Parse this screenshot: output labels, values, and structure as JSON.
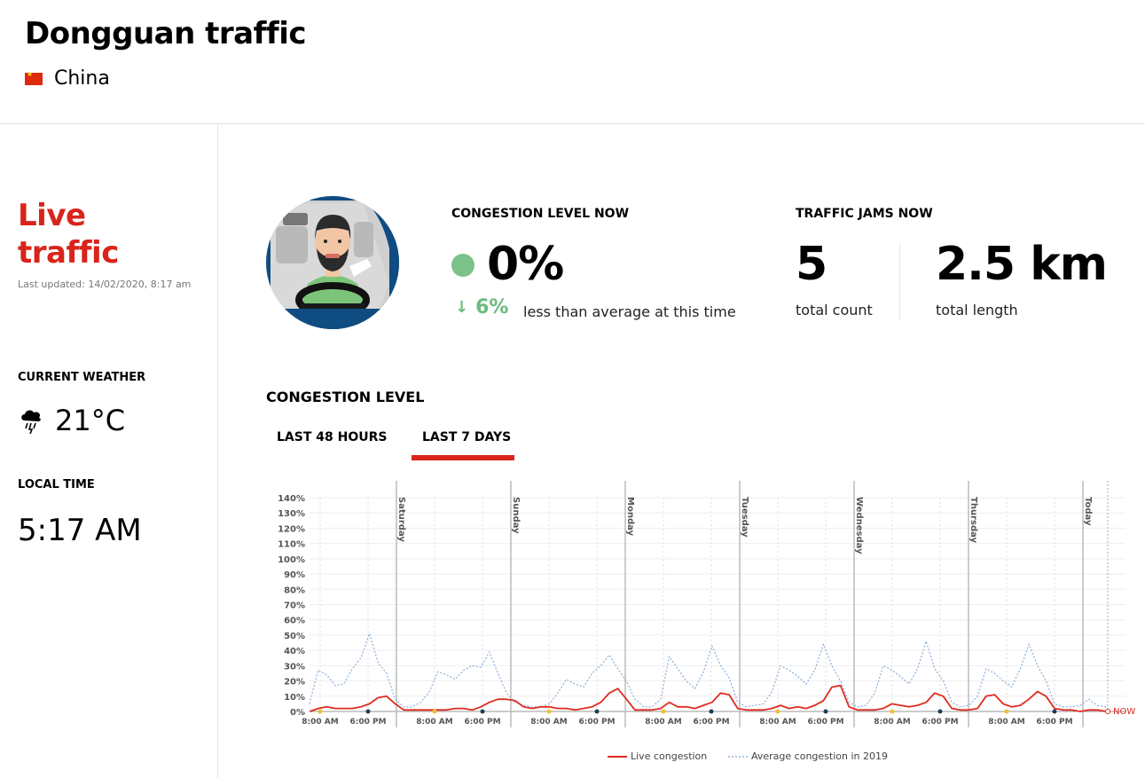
{
  "header": {
    "title": "Dongguan traffic",
    "country": "China"
  },
  "sidebar": {
    "live_title_line1": "Live",
    "live_title_line2": "traffic",
    "last_updated": "Last updated: 14/02/2020, 8:17 am",
    "weather_heading": "CURRENT WEATHER",
    "weather_icon": "thunderstorm-icon",
    "temperature": "21°C",
    "time_heading": "LOCAL TIME",
    "local_time": "5:17 AM"
  },
  "metrics": {
    "congestion_label": "CONGESTION LEVEL NOW",
    "congestion_value": "0%",
    "congestion_delta": "6%",
    "congestion_delta_text": "less than average at this time",
    "jams_label": "TRAFFIC JAMS NOW",
    "jams_count": "5",
    "jams_count_label": "total count",
    "jams_length": "2.5 km",
    "jams_length_label": "total length",
    "status_color": "#7bc28b"
  },
  "section": {
    "title": "CONGESTION LEVEL",
    "tabs": [
      {
        "label": "LAST 48 HOURS",
        "active": false
      },
      {
        "label": "LAST 7 DAYS",
        "active": true
      }
    ]
  },
  "chart_data": {
    "type": "line",
    "ylim": [
      0,
      140
    ],
    "yticks": [
      "0%",
      "10%",
      "20%",
      "30%",
      "40%",
      "50%",
      "60%",
      "70%",
      "80%",
      "90%",
      "100%",
      "110%",
      "120%",
      "130%",
      "140%"
    ],
    "day_labels": [
      "Saturday",
      "Sunday",
      "Monday",
      "Tuesday",
      "Wednesday",
      "Thursday",
      "Today"
    ],
    "x_tick_labels": [
      "8:00 AM",
      "6:00 PM"
    ],
    "now_label": "NOW",
    "series": [
      {
        "name": "Live congestion",
        "color": "#e02b20",
        "values": [
          0,
          2,
          3,
          2,
          2,
          2,
          3,
          5,
          9,
          10,
          5,
          1,
          1,
          1,
          1,
          1,
          1,
          2,
          2,
          1,
          3,
          6,
          8,
          8,
          7,
          3,
          2,
          3,
          3,
          2,
          2,
          1,
          2,
          3,
          6,
          12,
          15,
          8,
          1,
          1,
          1,
          2,
          6,
          3,
          3,
          2,
          4,
          6,
          12,
          11,
          2,
          1,
          1,
          1,
          2,
          4,
          2,
          3,
          2,
          4,
          7,
          16,
          17,
          3,
          1,
          1,
          1,
          2,
          5,
          4,
          3,
          4,
          6,
          12,
          10,
          2,
          1,
          1,
          2,
          10,
          11,
          5,
          3,
          4,
          8,
          13,
          10,
          2,
          1,
          1,
          0,
          1,
          1,
          0
        ]
      },
      {
        "name": "Average congestion in 2019",
        "color": "#8fb3db",
        "values": [
          5,
          27,
          24,
          17,
          18,
          28,
          35,
          51,
          32,
          25,
          8,
          3,
          3,
          6,
          13,
          26,
          24,
          21,
          27,
          30,
          29,
          39,
          25,
          12,
          6,
          4,
          3,
          3,
          5,
          12,
          21,
          18,
          16,
          25,
          30,
          37,
          28,
          20,
          8,
          3,
          3,
          8,
          36,
          28,
          20,
          15,
          26,
          43,
          30,
          22,
          6,
          3,
          4,
          5,
          13,
          30,
          27,
          23,
          18,
          27,
          44,
          30,
          20,
          6,
          3,
          4,
          12,
          30,
          27,
          23,
          18,
          28,
          46,
          28,
          20,
          6,
          3,
          4,
          10,
          28,
          25,
          20,
          16,
          28,
          44,
          30,
          20,
          5,
          3,
          3,
          4,
          8,
          4,
          3
        ]
      }
    ],
    "peak_markers": {
      "morning_color": "#f0c030",
      "evening_color": "#1c3f5b"
    }
  },
  "legend": {
    "live": "Live congestion",
    "average": "Average congestion in 2019"
  }
}
